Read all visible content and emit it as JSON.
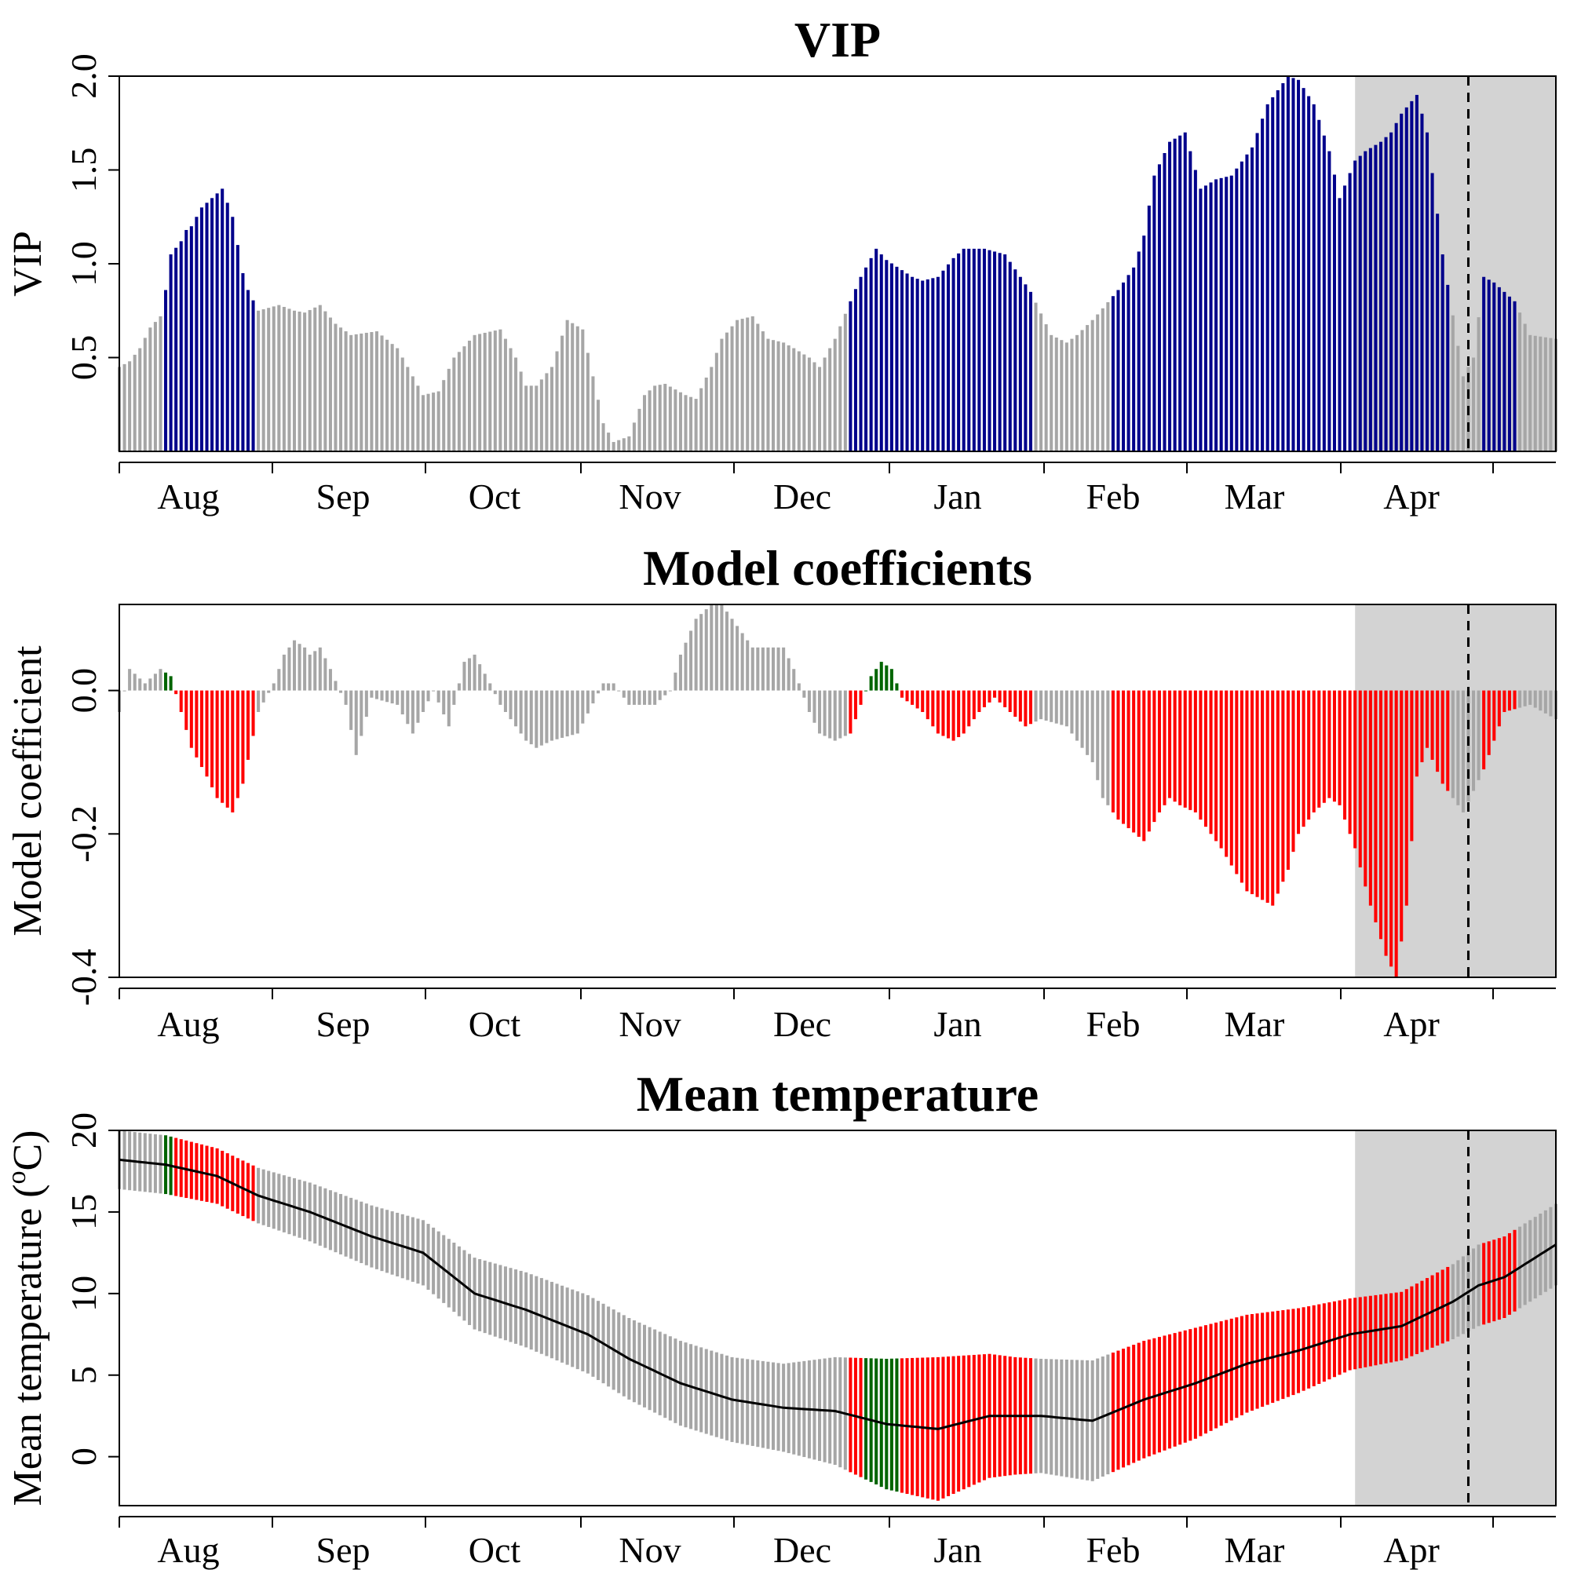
{
  "colors": {
    "not_important": "#a6a6a6",
    "vip_important": "#00008b",
    "coef_negative": "#ff0000",
    "coef_positive": "#006400",
    "shade": "#d3d3d3",
    "line": "#000000"
  },
  "chart_data": [
    {
      "id": "vip",
      "type": "bar",
      "title": "VIP",
      "ylabel": "VIP",
      "xlabel": "",
      "ylim": [
        0,
        2.0
      ],
      "yticks": [
        "0.5",
        "1.0",
        "1.5",
        "2.0"
      ],
      "months": [
        "Aug",
        "Sep",
        "Oct",
        "Nov",
        "Dec",
        "Jan",
        "Feb",
        "Mar",
        "Apr"
      ],
      "day_range": [
        1,
        280
      ],
      "shaded_days": [
        241,
        280
      ],
      "dashed_day": 263,
      "vip_threshold": 0.8,
      "x_days": [
        1,
        3,
        5,
        7,
        9,
        10,
        11,
        13,
        14,
        15,
        17,
        19,
        21,
        23,
        25,
        26,
        28,
        32,
        35,
        37,
        40,
        43,
        46,
        51,
        55,
        60,
        63,
        66,
        70,
        75,
        78,
        80,
        82,
        85,
        88,
        91,
        93,
        95,
        97,
        100,
        103,
        105,
        107,
        111,
        113,
        116,
        118,
        121,
        124,
        127,
        130,
        132,
        135,
        137,
        140,
        143,
        145,
        148,
        150,
        155,
        157,
        160,
        163,
        165,
        169,
        173,
        178,
        182,
        185,
        187,
        190,
        191,
        195,
        198,
        200,
        202,
        205,
        208,
        211,
        214,
        217,
        221,
        224,
        228,
        230,
        233,
        236,
        238,
        241,
        243,
        246,
        248,
        250,
        253,
        255,
        258,
        262,
        264,
        266,
        268,
        270,
        272,
        275,
        280
      ],
      "vip": [
        0.45,
        0.48,
        0.55,
        0.66,
        0.72,
        0.86,
        1.05,
        1.12,
        1.18,
        1.2,
        1.3,
        1.35,
        1.4,
        1.25,
        0.95,
        0.86,
        0.75,
        0.78,
        0.75,
        0.74,
        0.78,
        0.68,
        0.62,
        0.64,
        0.55,
        0.3,
        0.32,
        0.5,
        0.62,
        0.65,
        0.5,
        0.35,
        0.35,
        0.45,
        0.7,
        0.65,
        0.4,
        0.15,
        0.05,
        0.08,
        0.3,
        0.35,
        0.36,
        0.3,
        0.28,
        0.45,
        0.6,
        0.7,
        0.72,
        0.6,
        0.58,
        0.55,
        0.5,
        0.45,
        0.6,
        0.8,
        0.93,
        1.08,
        1.02,
        0.93,
        0.91,
        0.93,
        1.03,
        1.08,
        1.08,
        1.05,
        0.85,
        0.62,
        0.58,
        0.62,
        0.7,
        0.73,
        0.86,
        0.98,
        1.15,
        1.47,
        1.65,
        1.7,
        1.4,
        1.45,
        1.47,
        1.62,
        1.85,
        2.0,
        1.98,
        1.85,
        1.6,
        1.35,
        1.55,
        1.6,
        1.65,
        1.7,
        1.8,
        1.9,
        1.7,
        1.05,
        0.4,
        0.5,
        0.93,
        0.9,
        0.85,
        0.8,
        0.62,
        0.6
      ]
    },
    {
      "id": "coef",
      "type": "bar",
      "title": "Model coefficients",
      "ylabel": "Model coefficient",
      "xlabel": "",
      "ylim": [
        -0.4,
        0.12
      ],
      "yticks": [
        "-0.4",
        "-0.2",
        "0.0"
      ],
      "months": [
        "Aug",
        "Sep",
        "Oct",
        "Nov",
        "Dec",
        "Jan",
        "Feb",
        "Mar",
        "Apr"
      ],
      "day_range": [
        1,
        280
      ],
      "shaded_days": [
        241,
        280
      ],
      "dashed_day": 263,
      "x_days": [
        1,
        3,
        6,
        9,
        11,
        13,
        15,
        18,
        20,
        23,
        25,
        28,
        31,
        33,
        35,
        37,
        38,
        40,
        42,
        45,
        47,
        50,
        55,
        58,
        62,
        65,
        68,
        70,
        73,
        75,
        78,
        80,
        82,
        85,
        90,
        95,
        97,
        100,
        103,
        105,
        108,
        110,
        113,
        116,
        118,
        120,
        122,
        124,
        127,
        130,
        132,
        135,
        137,
        140,
        143,
        145,
        147,
        149,
        151,
        153,
        155,
        157,
        160,
        163,
        165,
        168,
        171,
        174,
        177,
        180,
        185,
        190,
        192,
        195,
        200,
        203,
        205,
        207,
        210,
        215,
        220,
        225,
        228,
        230,
        233,
        236,
        238,
        241,
        244,
        247,
        249,
        251,
        253,
        255,
        258,
        262,
        264,
        266,
        270,
        275,
        280
      ],
      "coef": [
        -0.03,
        0.03,
        0.01,
        0.03,
        0.02,
        -0.03,
        -0.08,
        -0.12,
        -0.15,
        -0.17,
        -0.13,
        -0.03,
        0.01,
        0.05,
        0.07,
        0.06,
        0.05,
        0.06,
        0.03,
        -0.02,
        -0.09,
        -0.01,
        -0.02,
        -0.06,
        0.0,
        -0.05,
        0.04,
        0.05,
        0.01,
        -0.02,
        -0.05,
        -0.07,
        -0.08,
        -0.07,
        -0.06,
        0.01,
        0.01,
        -0.02,
        -0.02,
        -0.02,
        0.0,
        0.05,
        0.1,
        0.12,
        0.12,
        0.1,
        0.08,
        0.06,
        0.06,
        0.06,
        0.03,
        -0.03,
        -0.06,
        -0.07,
        -0.06,
        -0.02,
        0.02,
        0.04,
        0.03,
        -0.01,
        -0.02,
        -0.03,
        -0.06,
        -0.07,
        -0.06,
        -0.03,
        -0.01,
        -0.03,
        -0.05,
        -0.04,
        -0.05,
        -0.1,
        -0.15,
        -0.18,
        -0.21,
        -0.17,
        -0.15,
        -0.16,
        -0.17,
        -0.22,
        -0.28,
        -0.3,
        -0.25,
        -0.2,
        -0.17,
        -0.15,
        -0.16,
        -0.22,
        -0.3,
        -0.37,
        -0.4,
        -0.3,
        -0.12,
        -0.08,
        -0.13,
        -0.17,
        -0.14,
        -0.11,
        -0.03,
        -0.02,
        -0.04
      ]
    },
    {
      "id": "temp",
      "type": "bar",
      "title": "Mean temperature",
      "ylabel": "Mean temperature (°C)",
      "ylabel_parts": [
        "Mean temperature (",
        "o",
        "C)"
      ],
      "xlabel": "",
      "ylim": [
        -3,
        20
      ],
      "yticks": [
        "0",
        "5",
        "10",
        "15",
        "20"
      ],
      "months": [
        "Aug",
        "Sep",
        "Oct",
        "Nov",
        "Dec",
        "Jan",
        "Feb",
        "Mar",
        "Apr"
      ],
      "day_range": [
        1,
        280
      ],
      "shaded_days": [
        241,
        280
      ],
      "dashed_day": 263,
      "x_days": [
        1,
        10,
        20,
        28,
        38,
        50,
        60,
        70,
        80,
        92,
        100,
        110,
        120,
        130,
        140,
        150,
        160,
        170,
        175,
        180,
        190,
        200,
        210,
        220,
        230,
        240,
        250,
        260,
        265,
        270,
        280
      ],
      "mean": [
        18.2,
        17.9,
        17.2,
        16.0,
        15.0,
        13.5,
        12.5,
        10.0,
        9.0,
        7.5,
        6.0,
        4.5,
        3.5,
        3.0,
        2.8,
        2.0,
        1.7,
        2.5,
        2.5,
        2.5,
        2.2,
        3.5,
        4.5,
        5.7,
        6.5,
        7.5,
        8.0,
        9.5,
        10.5,
        11.0,
        13.0
      ],
      "sd": [
        1.8,
        1.8,
        1.7,
        1.7,
        1.8,
        1.9,
        2.0,
        2.2,
        2.3,
        2.4,
        2.5,
        2.6,
        2.6,
        2.7,
        3.3,
        4.0,
        4.4,
        3.8,
        3.6,
        3.5,
        3.7,
        3.6,
        3.4,
        3.0,
        2.6,
        2.2,
        2.1,
        2.3,
        2.5,
        2.5,
        2.5
      ]
    }
  ]
}
